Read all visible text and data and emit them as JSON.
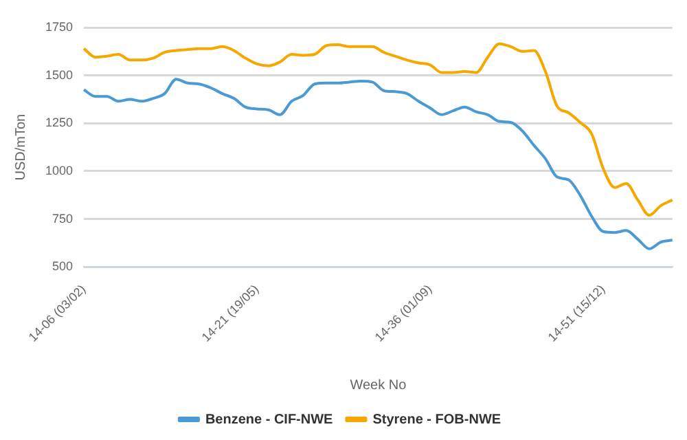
{
  "chart_data": {
    "type": "line",
    "xlabel": "Week No",
    "ylabel": "USD/mTon",
    "ylim": [
      500,
      1750
    ],
    "yticks": [
      500,
      750,
      1000,
      1250,
      1500,
      1750
    ],
    "grid": "y",
    "legend": "bottom",
    "marker": "none",
    "categories": [
      "14-06 (03/02)",
      null,
      null,
      null,
      null,
      null,
      null,
      null,
      null,
      null,
      null,
      null,
      null,
      null,
      null,
      "14-21 (19/05)",
      null,
      null,
      null,
      null,
      null,
      null,
      null,
      null,
      null,
      null,
      null,
      null,
      null,
      null,
      "14-36 (01/09)",
      null,
      null,
      null,
      null,
      null,
      null,
      null,
      null,
      null,
      null,
      null,
      null,
      null,
      null,
      "14-51 (15/12)",
      null,
      null,
      null,
      null,
      null,
      null
    ],
    "series": [
      {
        "name": "Benzene - CIF-NWE",
        "color": "#4a9ad4",
        "values": [
          1425,
          1390,
          1390,
          1365,
          1375,
          1365,
          1380,
          1405,
          1480,
          1460,
          1455,
          1435,
          1405,
          1380,
          1335,
          1325,
          1320,
          1295,
          1365,
          1395,
          1455,
          1460,
          1460,
          1465,
          1470,
          1465,
          1420,
          1415,
          1405,
          1365,
          1330,
          1295,
          1315,
          1335,
          1310,
          1295,
          1260,
          1255,
          1210,
          1135,
          1065,
          970,
          955,
          875,
          765,
          685,
          680,
          690,
          645,
          595,
          630,
          640
        ]
      },
      {
        "name": "Styrene - FOB-NWE",
        "color": "#f5a800",
        "values": [
          1640,
          1595,
          1600,
          1610,
          1580,
          1580,
          1590,
          1620,
          1630,
          1635,
          1640,
          1640,
          1650,
          1630,
          1590,
          1560,
          1550,
          1570,
          1610,
          1605,
          1610,
          1655,
          1660,
          1650,
          1650,
          1650,
          1620,
          1600,
          1580,
          1565,
          1555,
          1515,
          1515,
          1520,
          1515,
          1595,
          1665,
          1650,
          1625,
          1630,
          1520,
          1340,
          1305,
          1255,
          1195,
          1015,
          915,
          935,
          850,
          770,
          820,
          850
        ]
      }
    ]
  }
}
